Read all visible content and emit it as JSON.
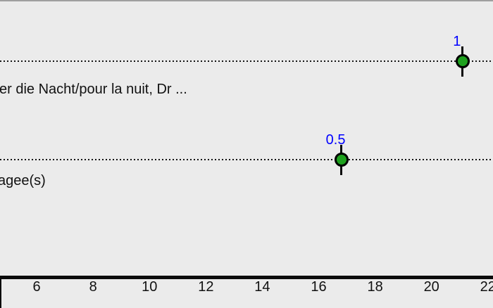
{
  "figure": {
    "background": "#ebebeb",
    "top_border_color": "#9f9f9f"
  },
  "chart_data": {
    "type": "scatter",
    "subtype": "forest-dot-plot",
    "grid": "full-width dotted horizontal guide line per row",
    "x_axis": {
      "ticks": [
        "6",
        "8",
        "10",
        "12",
        "14",
        "16",
        "18",
        "20",
        "22"
      ],
      "tick_values": [
        6,
        8,
        10,
        12,
        14,
        16,
        18,
        20,
        22
      ],
      "xlim": [
        4.7,
        22.18
      ]
    },
    "rows": [
      {
        "label": "er die Nacht/pour la nuit, Dr ...",
        "point_label": "1",
        "x": 21.1
      },
      {
        "label": "agee(s)",
        "point_label": "0.5",
        "x": 16.8
      }
    ],
    "styles": {
      "point_fill": "#1ea11e",
      "point_border": "#000000",
      "errorbar_color": "#0a0a0a",
      "value_label_color": "#0000ff",
      "guide_line_color": "#141414",
      "axis_color": "#0b0b0b",
      "text_color": "#111111"
    }
  }
}
